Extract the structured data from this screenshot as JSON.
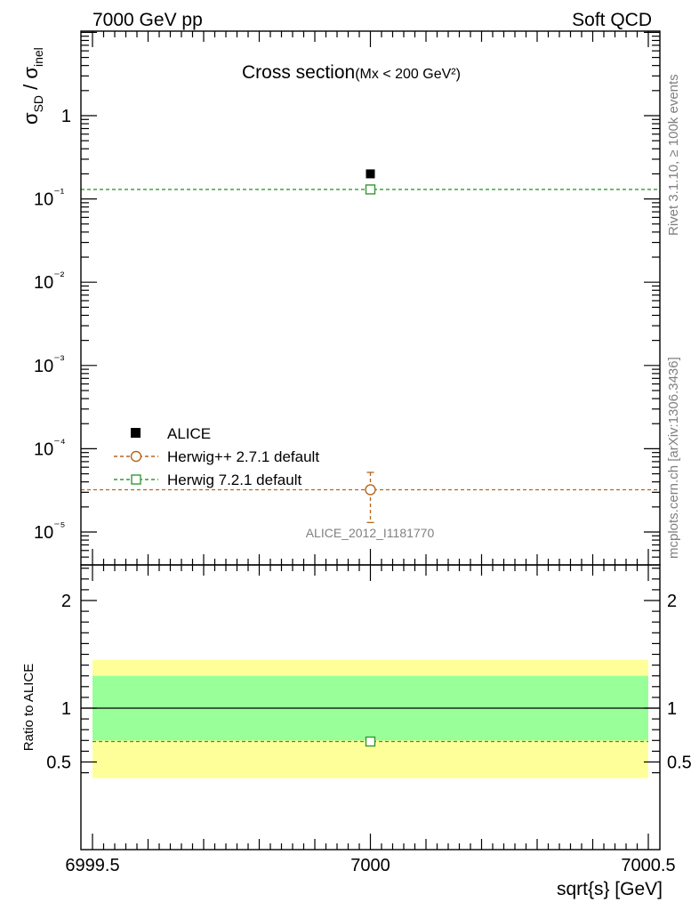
{
  "header": {
    "left": "7000 GeV pp",
    "right": "Soft QCD"
  },
  "side": {
    "rivet": "Rivet 3.1.10, ≥ 100k events",
    "mcplots": "mcplots.cern.ch [arXiv:1306.3436]"
  },
  "chart_data": [
    {
      "type": "scatter",
      "title": "Cross section",
      "subtitle": "(Mx < 200 GeV²)",
      "analysis_label": "ALICE_2012_I1181770",
      "ylabel": "σSD / σinel",
      "yscale": "log",
      "ylim": [
        4.5e-06,
        10
      ],
      "xlim": [
        6999.5,
        7000.5
      ],
      "y_tick_labels": [
        "10⁻⁵",
        "10⁻⁴",
        "10⁻³",
        "10⁻²",
        "10⁻¹",
        "1"
      ],
      "legend_position": "lower-left",
      "series": [
        {
          "name": "ALICE",
          "color": "#000000",
          "marker": "filled-square",
          "x": [
            7000
          ],
          "y": [
            0.2
          ]
        },
        {
          "name": "Herwig++ 2.7.1 default",
          "color": "#b5651d",
          "marker": "open-circle",
          "line": "dashed",
          "x": [
            7000
          ],
          "y": [
            3.22e-05
          ],
          "yerr_low": [
            1.92e-05
          ],
          "yerr_high": [
            1.98e-05
          ]
        },
        {
          "name": "Herwig 7.2.1 default",
          "color": "#339933",
          "marker": "open-square",
          "line": "dashed",
          "x": [
            7000
          ],
          "y": [
            0.13
          ]
        }
      ]
    },
    {
      "type": "scatter",
      "ylabel": "Ratio to ALICE",
      "xlabel": "sqrt{s} [GeV]",
      "ylim": [
        0.35,
        2.35
      ],
      "xlim": [
        6999.5,
        7000.5
      ],
      "x_tick_labels": [
        "6999.5",
        "7000",
        "7000.5"
      ],
      "y_tick_labels": [
        "0.5",
        "1",
        "2"
      ],
      "bands": [
        {
          "name": "outer",
          "color": "#ffff99",
          "low": 0.35,
          "high": 1.45
        },
        {
          "name": "inner",
          "color": "#99ff99",
          "low": 0.7,
          "high": 1.3
        }
      ],
      "reference_line": 1,
      "series": [
        {
          "name": "Herwig 7.2.1 default",
          "color": "#339933",
          "marker": "open-square",
          "x": [
            7000
          ],
          "y": [
            0.69
          ]
        }
      ]
    }
  ]
}
